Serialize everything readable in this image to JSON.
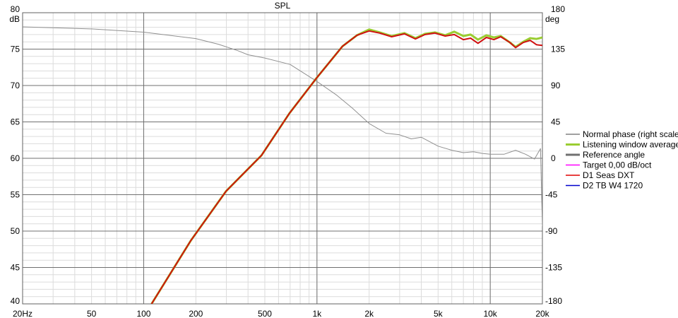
{
  "chart_data": {
    "type": "line",
    "title": "SPL",
    "ylabel_left": "dB",
    "ylabel_right": "deg",
    "x_scale": "log",
    "xlim": [
      20,
      20000
    ],
    "ylim_left": [
      40,
      80
    ],
    "ylim_right": [
      -180,
      180
    ],
    "x_ticks": [
      {
        "v": 20,
        "l": "20Hz"
      },
      {
        "v": 50,
        "l": "50"
      },
      {
        "v": 100,
        "l": "100"
      },
      {
        "v": 200,
        "l": "200"
      },
      {
        "v": 500,
        "l": "500"
      },
      {
        "v": 1000,
        "l": "1k"
      },
      {
        "v": 2000,
        "l": "2k"
      },
      {
        "v": 5000,
        "l": "5k"
      },
      {
        "v": 10000,
        "l": "10k"
      },
      {
        "v": 20000,
        "l": "20k"
      }
    ],
    "y_ticks_left": [
      40,
      45,
      50,
      55,
      60,
      65,
      70,
      75,
      80
    ],
    "y_ticks_right": [
      -180,
      -135,
      -90,
      -45,
      0,
      45,
      90,
      135,
      180
    ],
    "grid": true,
    "legend_position": "right",
    "legend": [
      {
        "name": "Normal phase (right scale)",
        "color": "#808080"
      },
      {
        "name": "Listening window average",
        "color": "#9acd32"
      },
      {
        "name": "Reference angle",
        "color": "#707070"
      },
      {
        "name": "Target 0,00 dB/oct",
        "color": "#ff00ff"
      },
      {
        "name": "D1 Seas DXT",
        "color": "#e00000"
      },
      {
        "name": "D2 TB W4 1720",
        "color": "#0000cc"
      }
    ],
    "series": [
      {
        "name": "Normal phase (right scale)",
        "axis": "right",
        "color": "#909090",
        "x": [
          20,
          50,
          100,
          200,
          270,
          350,
          400,
          500,
          700,
          1000,
          1300,
          1600,
          2000,
          2500,
          3000,
          3500,
          4000,
          5000,
          6000,
          7000,
          8000,
          9000,
          10000,
          12000,
          14000,
          16000,
          18000,
          19500,
          20000
        ],
        "y": [
          162.5,
          160,
          156,
          148,
          141,
          133,
          128,
          124,
          116,
          95,
          78,
          62,
          43,
          31,
          29,
          24,
          26,
          15,
          10,
          7,
          8,
          6,
          5,
          5,
          10,
          5,
          -1,
          12,
          -84
        ]
      },
      {
        "name": "Listening window average",
        "axis": "left",
        "color": "#9acd32",
        "x": [
          111,
          187,
          299,
          478,
          695,
          1000,
          1405,
          1700,
          2000,
          2300,
          2700,
          3200,
          3700,
          4200,
          4800,
          5500,
          6200,
          7000,
          7700,
          8500,
          9500,
          10500,
          11500,
          13000,
          14000,
          15500,
          17000,
          18500,
          20000
        ],
        "y": [
          40,
          48.7,
          55.5,
          60.4,
          66.2,
          71.1,
          75.4,
          76.9,
          77.7,
          77.3,
          76.8,
          77.2,
          76.5,
          77.1,
          77.3,
          76.9,
          77.4,
          76.8,
          77.0,
          76.3,
          76.9,
          76.6,
          76.8,
          75.9,
          75.3,
          76.0,
          76.5,
          76.4,
          76.6
        ]
      },
      {
        "name": "D1 Seas DXT",
        "axis": "left",
        "color": "#d01010",
        "x": [
          111,
          187,
          299,
          478,
          695,
          1000,
          1405,
          1700,
          2000,
          2300,
          2700,
          3200,
          3700,
          4200,
          4800,
          5500,
          6200,
          7000,
          7700,
          8500,
          9500,
          10500,
          11500,
          13000,
          14000,
          15500,
          17000,
          18500,
          20000
        ],
        "y": [
          40,
          48.7,
          55.5,
          60.4,
          66.2,
          71.1,
          75.4,
          76.9,
          77.5,
          77.2,
          76.7,
          77.1,
          76.4,
          77.0,
          77.2,
          76.8,
          77.0,
          76.3,
          76.5,
          75.8,
          76.6,
          76.3,
          76.7,
          75.9,
          75.2,
          75.9,
          76.2,
          75.6,
          75.5
        ]
      }
    ]
  }
}
